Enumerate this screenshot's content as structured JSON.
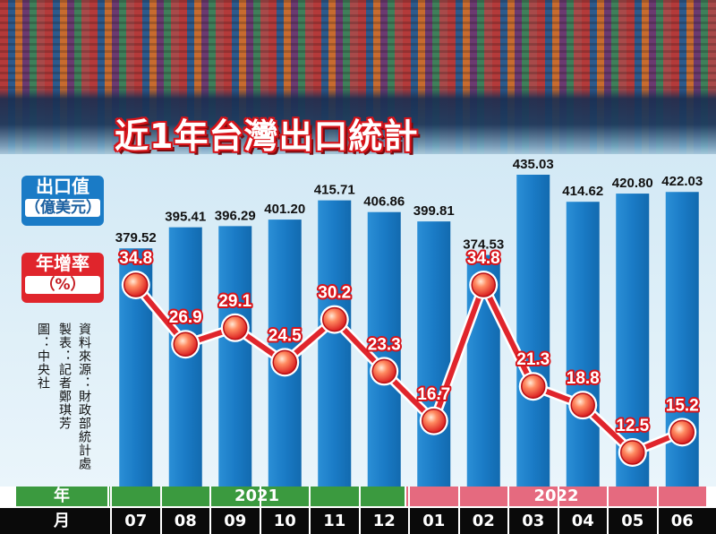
{
  "title": "近1年台灣出口統計",
  "legend": {
    "export_value_label": "出口值",
    "export_value_unit": "（億美元）",
    "growth_rate_label": "年增率",
    "growth_rate_unit": "（%）"
  },
  "credits": {
    "source": "資料來源：財政部統計處",
    "maker": "製表：記者鄭琪芳",
    "image": "圖：中央社"
  },
  "axis": {
    "year_row_label": "年",
    "month_row_label": "月",
    "years": [
      "2021",
      "2022"
    ]
  },
  "colors": {
    "bar": "#1a7bc6",
    "line": "#e0252c",
    "year_2021": "#3b9a3f",
    "year_2022": "#e56a7f"
  },
  "chart_data": {
    "type": "bar",
    "categories": [
      "07",
      "08",
      "09",
      "10",
      "11",
      "12",
      "01",
      "02",
      "03",
      "04",
      "05",
      "06"
    ],
    "series": [
      {
        "name": "出口值",
        "type": "bar",
        "values": [
          379.52,
          395.41,
          396.29,
          401.2,
          415.71,
          406.86,
          399.81,
          374.53,
          435.03,
          414.62,
          420.8,
          422.03
        ],
        "labels": [
          "379.52",
          "395.41",
          "396.29",
          "401.20",
          "415.71",
          "406.86",
          "399.81",
          "374.53",
          "435.03",
          "414.62",
          "420.80",
          "422.03"
        ]
      },
      {
        "name": "年增率",
        "type": "line",
        "values": [
          34.8,
          26.9,
          29.1,
          24.5,
          30.2,
          23.3,
          16.7,
          34.8,
          21.3,
          18.8,
          12.5,
          15.2
        ],
        "labels": [
          "34.8",
          "26.9",
          "29.1",
          "24.5",
          "30.2",
          "23.3",
          "16.7",
          "34.8",
          "21.3",
          "18.8",
          "12.5",
          "15.2"
        ]
      }
    ]
  }
}
